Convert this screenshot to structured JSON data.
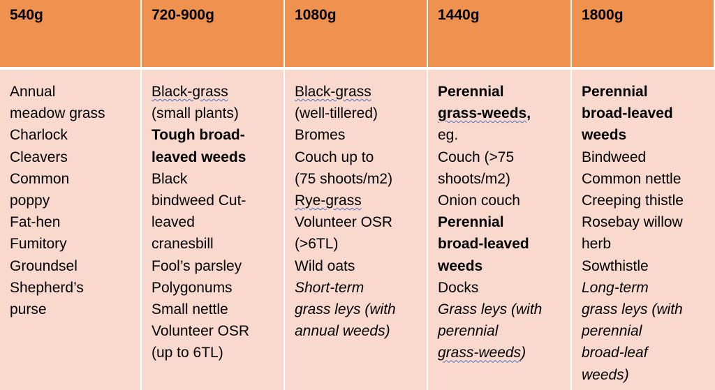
{
  "columns": [
    {
      "header": "540g",
      "lines": [
        {
          "t": "Annual"
        },
        {
          "t": "meadow grass"
        },
        {
          "t": "Charlock"
        },
        {
          "t": "Cleavers"
        },
        {
          "t": "Common"
        },
        {
          "t": "poppy"
        },
        {
          "t": "Fat-hen"
        },
        {
          "t": "Fumitory"
        },
        {
          "t": "Groundsel"
        },
        {
          "t": "Shepherd’s"
        },
        {
          "t": "purse"
        }
      ]
    },
    {
      "header": "720-900g",
      "lines": [
        {
          "t": "Black-grass",
          "u": true
        },
        {
          "t": "(small plants)"
        },
        {
          "t": "Tough broad-",
          "b": true
        },
        {
          "t": "leaved weeds",
          "b": true
        },
        {
          "t": "Black"
        },
        {
          "t": "bindweed Cut-"
        },
        {
          "t": "leaved"
        },
        {
          "t": "cranesbill"
        },
        {
          "t": "Fool’s parsley"
        },
        {
          "t": "Polygonums"
        },
        {
          "t": "Small nettle"
        },
        {
          "t": "Volunteer OSR"
        },
        {
          "t": "(up to 6TL)"
        }
      ]
    },
    {
      "header": "1080g",
      "lines": [
        {
          "t": "Black-grass",
          "u": true
        },
        {
          "t": "(well-tillered)"
        },
        {
          "t": "Bromes"
        },
        {
          "t": "Couch up to"
        },
        {
          "t": "(75 shoots/m2)"
        },
        {
          "t": "Rye-grass",
          "u": true
        },
        {
          "t": "Volunteer OSR"
        },
        {
          "t": "(>6TL)"
        },
        {
          "t": "Wild oats"
        },
        {
          "t": "Short-term",
          "i": true
        },
        {
          "t": "grass leys (with",
          "i": true
        },
        {
          "t": "annual weeds)",
          "i": true
        }
      ]
    },
    {
      "header": "1440g",
      "lines": [
        {
          "t": "Perennial",
          "b": true
        },
        {
          "t": "grass-weeds",
          "b": true,
          "u": true,
          "suffix": ","
        },
        {
          "t": "eg."
        },
        {
          "t": "Couch (>75"
        },
        {
          "t": "shoots/m2)"
        },
        {
          "t": "Onion couch"
        },
        {
          "t": "Perennial",
          "b": true
        },
        {
          "t": "broad-leaved",
          "b": true
        },
        {
          "t": "weeds",
          "b": true
        },
        {
          "t": "Docks"
        },
        {
          "t": "Grass leys (with",
          "i": true
        },
        {
          "t": "perennial",
          "i": true
        },
        {
          "t": "grass-weeds",
          "i": true,
          "u": true,
          "suffix": ")"
        }
      ]
    },
    {
      "header": "1800g",
      "lines": [
        {
          "t": "Perennial",
          "b": true
        },
        {
          "t": "broad-leaved",
          "b": true
        },
        {
          "t": "weeds",
          "b": true
        },
        {
          "t": "Bindweed"
        },
        {
          "t": "Common nettle"
        },
        {
          "t": "Creeping thistle"
        },
        {
          "t": "Rosebay willow"
        },
        {
          "t": "herb"
        },
        {
          "t": "Sowthistle"
        },
        {
          "t": "Long-term",
          "i": true
        },
        {
          "t": "grass leys (with",
          "i": true
        },
        {
          "t": "perennial",
          "i": true
        },
        {
          "t": "broad-leaf",
          "i": true
        },
        {
          "t": "weeds)",
          "i": true
        }
      ]
    }
  ],
  "colors": {
    "header_bg": "#f0924f",
    "body_bg": "#f9d9cd",
    "underline": "#4a72c4"
  }
}
